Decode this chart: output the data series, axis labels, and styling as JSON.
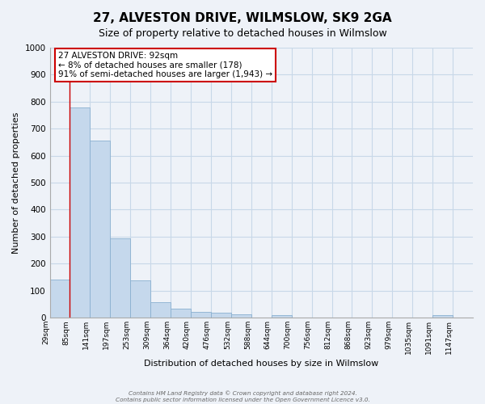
{
  "title": "27, ALVESTON DRIVE, WILMSLOW, SK9 2GA",
  "subtitle": "Size of property relative to detached houses in Wilmslow",
  "xlabel": "Distribution of detached houses by size in Wilmslow",
  "ylabel": "Number of detached properties",
  "bar_labels": [
    "29sqm",
    "85sqm",
    "141sqm",
    "197sqm",
    "253sqm",
    "309sqm",
    "364sqm",
    "420sqm",
    "476sqm",
    "532sqm",
    "588sqm",
    "644sqm",
    "700sqm",
    "756sqm",
    "812sqm",
    "868sqm",
    "923sqm",
    "979sqm",
    "1035sqm",
    "1091sqm",
    "1147sqm"
  ],
  "bar_heights": [
    140,
    780,
    655,
    295,
    138,
    57,
    33,
    20,
    18,
    13,
    0,
    10,
    0,
    0,
    0,
    0,
    0,
    0,
    0,
    10,
    0
  ],
  "bar_color": "#c5d8ec",
  "bar_edge_color": "#8ab0d0",
  "ylim": [
    0,
    1000
  ],
  "yticks": [
    0,
    100,
    200,
    300,
    400,
    500,
    600,
    700,
    800,
    900,
    1000
  ],
  "vline_x": 1,
  "vline_color": "#cc0000",
  "annotation_text": "27 ALVESTON DRIVE: 92sqm\n← 8% of detached houses are smaller (178)\n91% of semi-detached houses are larger (1,943) →",
  "annotation_box_color": "#ffffff",
  "annotation_box_edge": "#cc0000",
  "footer_line1": "Contains HM Land Registry data © Crown copyright and database right 2024.",
  "footer_line2": "Contains public sector information licensed under the Open Government Licence v3.0.",
  "grid_color": "#c8d8e8",
  "background_color": "#eef2f8",
  "plot_bg_color": "#eef2f8",
  "title_fontsize": 11,
  "subtitle_fontsize": 9,
  "ylabel_fontsize": 8,
  "xlabel_fontsize": 8
}
